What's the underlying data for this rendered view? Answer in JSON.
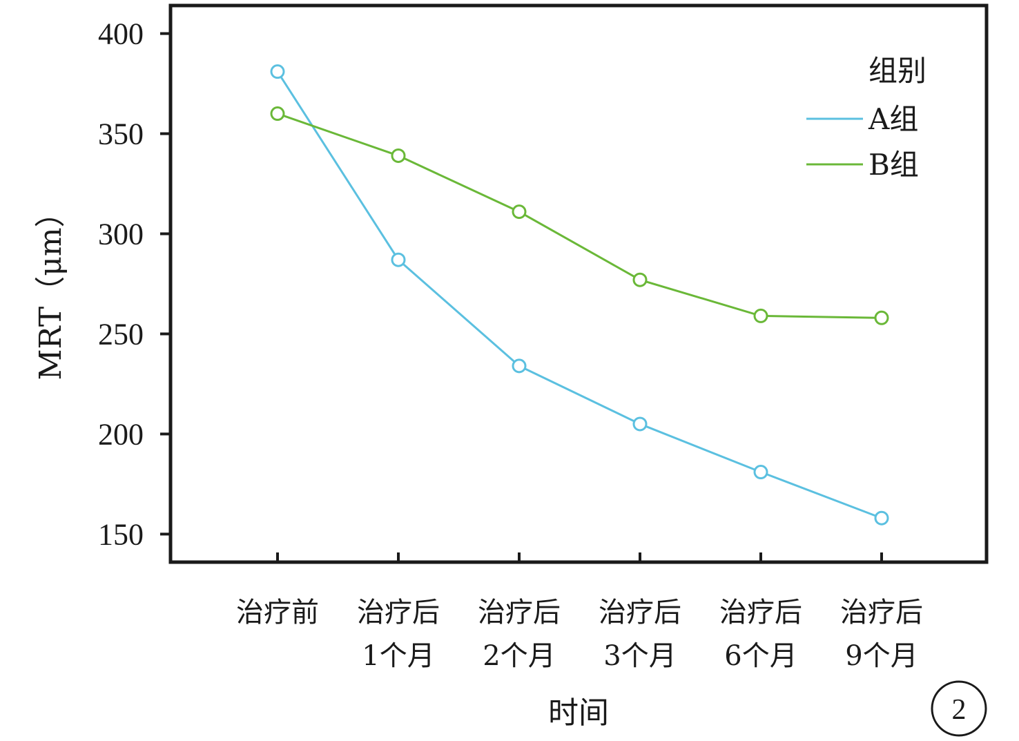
{
  "chart_data": {
    "type": "line",
    "xlabel": "时间",
    "ylabel": "MRT（μm）",
    "ylim": [
      136,
      414
    ],
    "yticks": [
      150,
      200,
      250,
      300,
      350,
      400
    ],
    "categories": [
      [
        "治疗前"
      ],
      [
        "治疗后",
        "1个月"
      ],
      [
        "治疗后",
        "2个月"
      ],
      [
        "治疗后",
        "3个月"
      ],
      [
        "治疗后",
        "6个月"
      ],
      [
        "治疗后",
        "9个月"
      ]
    ],
    "legend": {
      "title": "组别",
      "position": "top-right"
    },
    "series": [
      {
        "name": "A组",
        "color": "#5bc0e0",
        "values": [
          381,
          287,
          234,
          205,
          181,
          158
        ]
      },
      {
        "name": "B组",
        "color": "#6ab838",
        "values": [
          360,
          339,
          311,
          277,
          259,
          258
        ]
      }
    ],
    "grid": false,
    "marker": "open-circle"
  },
  "panel_label": "2"
}
